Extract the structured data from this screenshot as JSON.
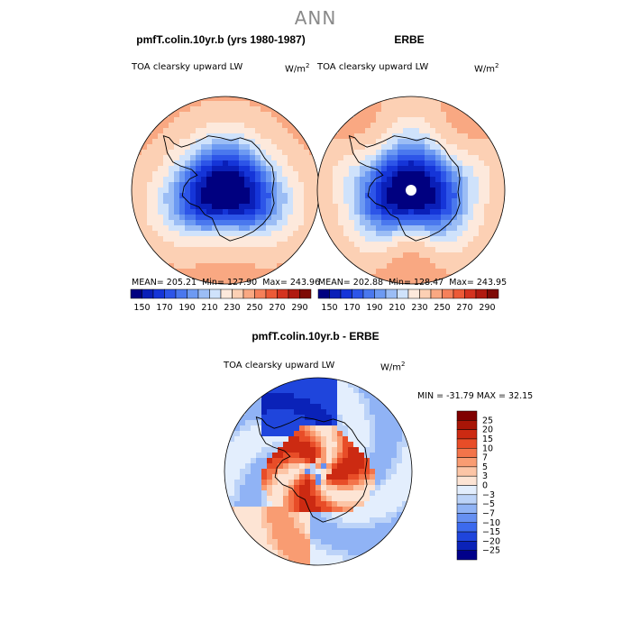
{
  "figure": {
    "suptitle": "ANN",
    "var_name": "TOA clearsky upward LW",
    "units_base": "W/m",
    "units_exp": "2"
  },
  "chart_data": [
    {
      "type": "heatmap",
      "title": "pmfT.colin.10yr.b (yrs 1980-1987)",
      "subtitle": "TOA clearsky upward LW",
      "units": "W/m2",
      "stats": {
        "mean_label": "MEAN=",
        "mean": "205.21",
        "min_label": "Min=",
        "min": "127.90",
        "max_label": "Max=",
        "max": "243.96"
      },
      "levels": [
        150,
        160,
        170,
        180,
        190,
        200,
        210,
        220,
        230,
        240,
        250,
        260,
        270,
        280,
        290
      ],
      "tick_labels": [
        "150",
        "170",
        "190",
        "210",
        "230",
        "250",
        "270",
        "290"
      ],
      "colors": [
        "#000080",
        "#0a1fb8",
        "#1535d8",
        "#2d55e8",
        "#4a78ee",
        "#6d9af2",
        "#9bbdf5",
        "#cfe2fb",
        "#fde9dc",
        "#fcd0b4",
        "#f9a882",
        "#f5805a",
        "#ec5a37",
        "#d4331f",
        "#b01a10",
        "#7e0a05"
      ],
      "missing_pole": false
    },
    {
      "type": "heatmap",
      "title": "ERBE",
      "subtitle": "TOA clearsky upward LW",
      "units": "W/m2",
      "stats": {
        "mean_label": "MEAN=",
        "mean": "202.88",
        "min_label": "Min=",
        "min": "128.47",
        "max_label": "Max=",
        "max": "243.95"
      },
      "levels": [
        150,
        160,
        170,
        180,
        190,
        200,
        210,
        220,
        230,
        240,
        250,
        260,
        270,
        280,
        290
      ],
      "tick_labels": [
        "150",
        "170",
        "190",
        "210",
        "230",
        "250",
        "270",
        "290"
      ],
      "colors": [
        "#000080",
        "#0a1fb8",
        "#1535d8",
        "#2d55e8",
        "#4a78ee",
        "#6d9af2",
        "#9bbdf5",
        "#cfe2fb",
        "#fde9dc",
        "#fcd0b4",
        "#f9a882",
        "#f5805a",
        "#ec5a37",
        "#d4331f",
        "#b01a10",
        "#7e0a05"
      ],
      "missing_pole": true
    },
    {
      "type": "heatmap",
      "title": "pmfT.colin.10yr.b - ERBE",
      "subtitle": "TOA clearsky upward LW",
      "units": "W/m2",
      "stats": {
        "min_label": "MIN =",
        "min": "-31.79",
        "max_label": "MAX =",
        "max": "32.15"
      },
      "levels": [
        -25,
        -20,
        -15,
        -10,
        -7,
        -5,
        -3,
        0,
        3,
        5,
        7,
        10,
        15,
        20,
        25
      ],
      "tick_labels": [
        "25",
        "20",
        "15",
        "10",
        "7",
        "5",
        "3",
        "0",
        "−3",
        "−5",
        "−7",
        "−10",
        "−15",
        "−20",
        "−25"
      ],
      "colors": [
        "#00008a",
        "#0a22b8",
        "#1f45dc",
        "#3c6aee",
        "#6690f2",
        "#90b3f5",
        "#bcd3f8",
        "#e3eefd",
        "#fde4d4",
        "#fcc5a6",
        "#f99c72",
        "#f3744a",
        "#e84d28",
        "#cc2a12",
        "#a81506",
        "#800000"
      ]
    }
  ]
}
